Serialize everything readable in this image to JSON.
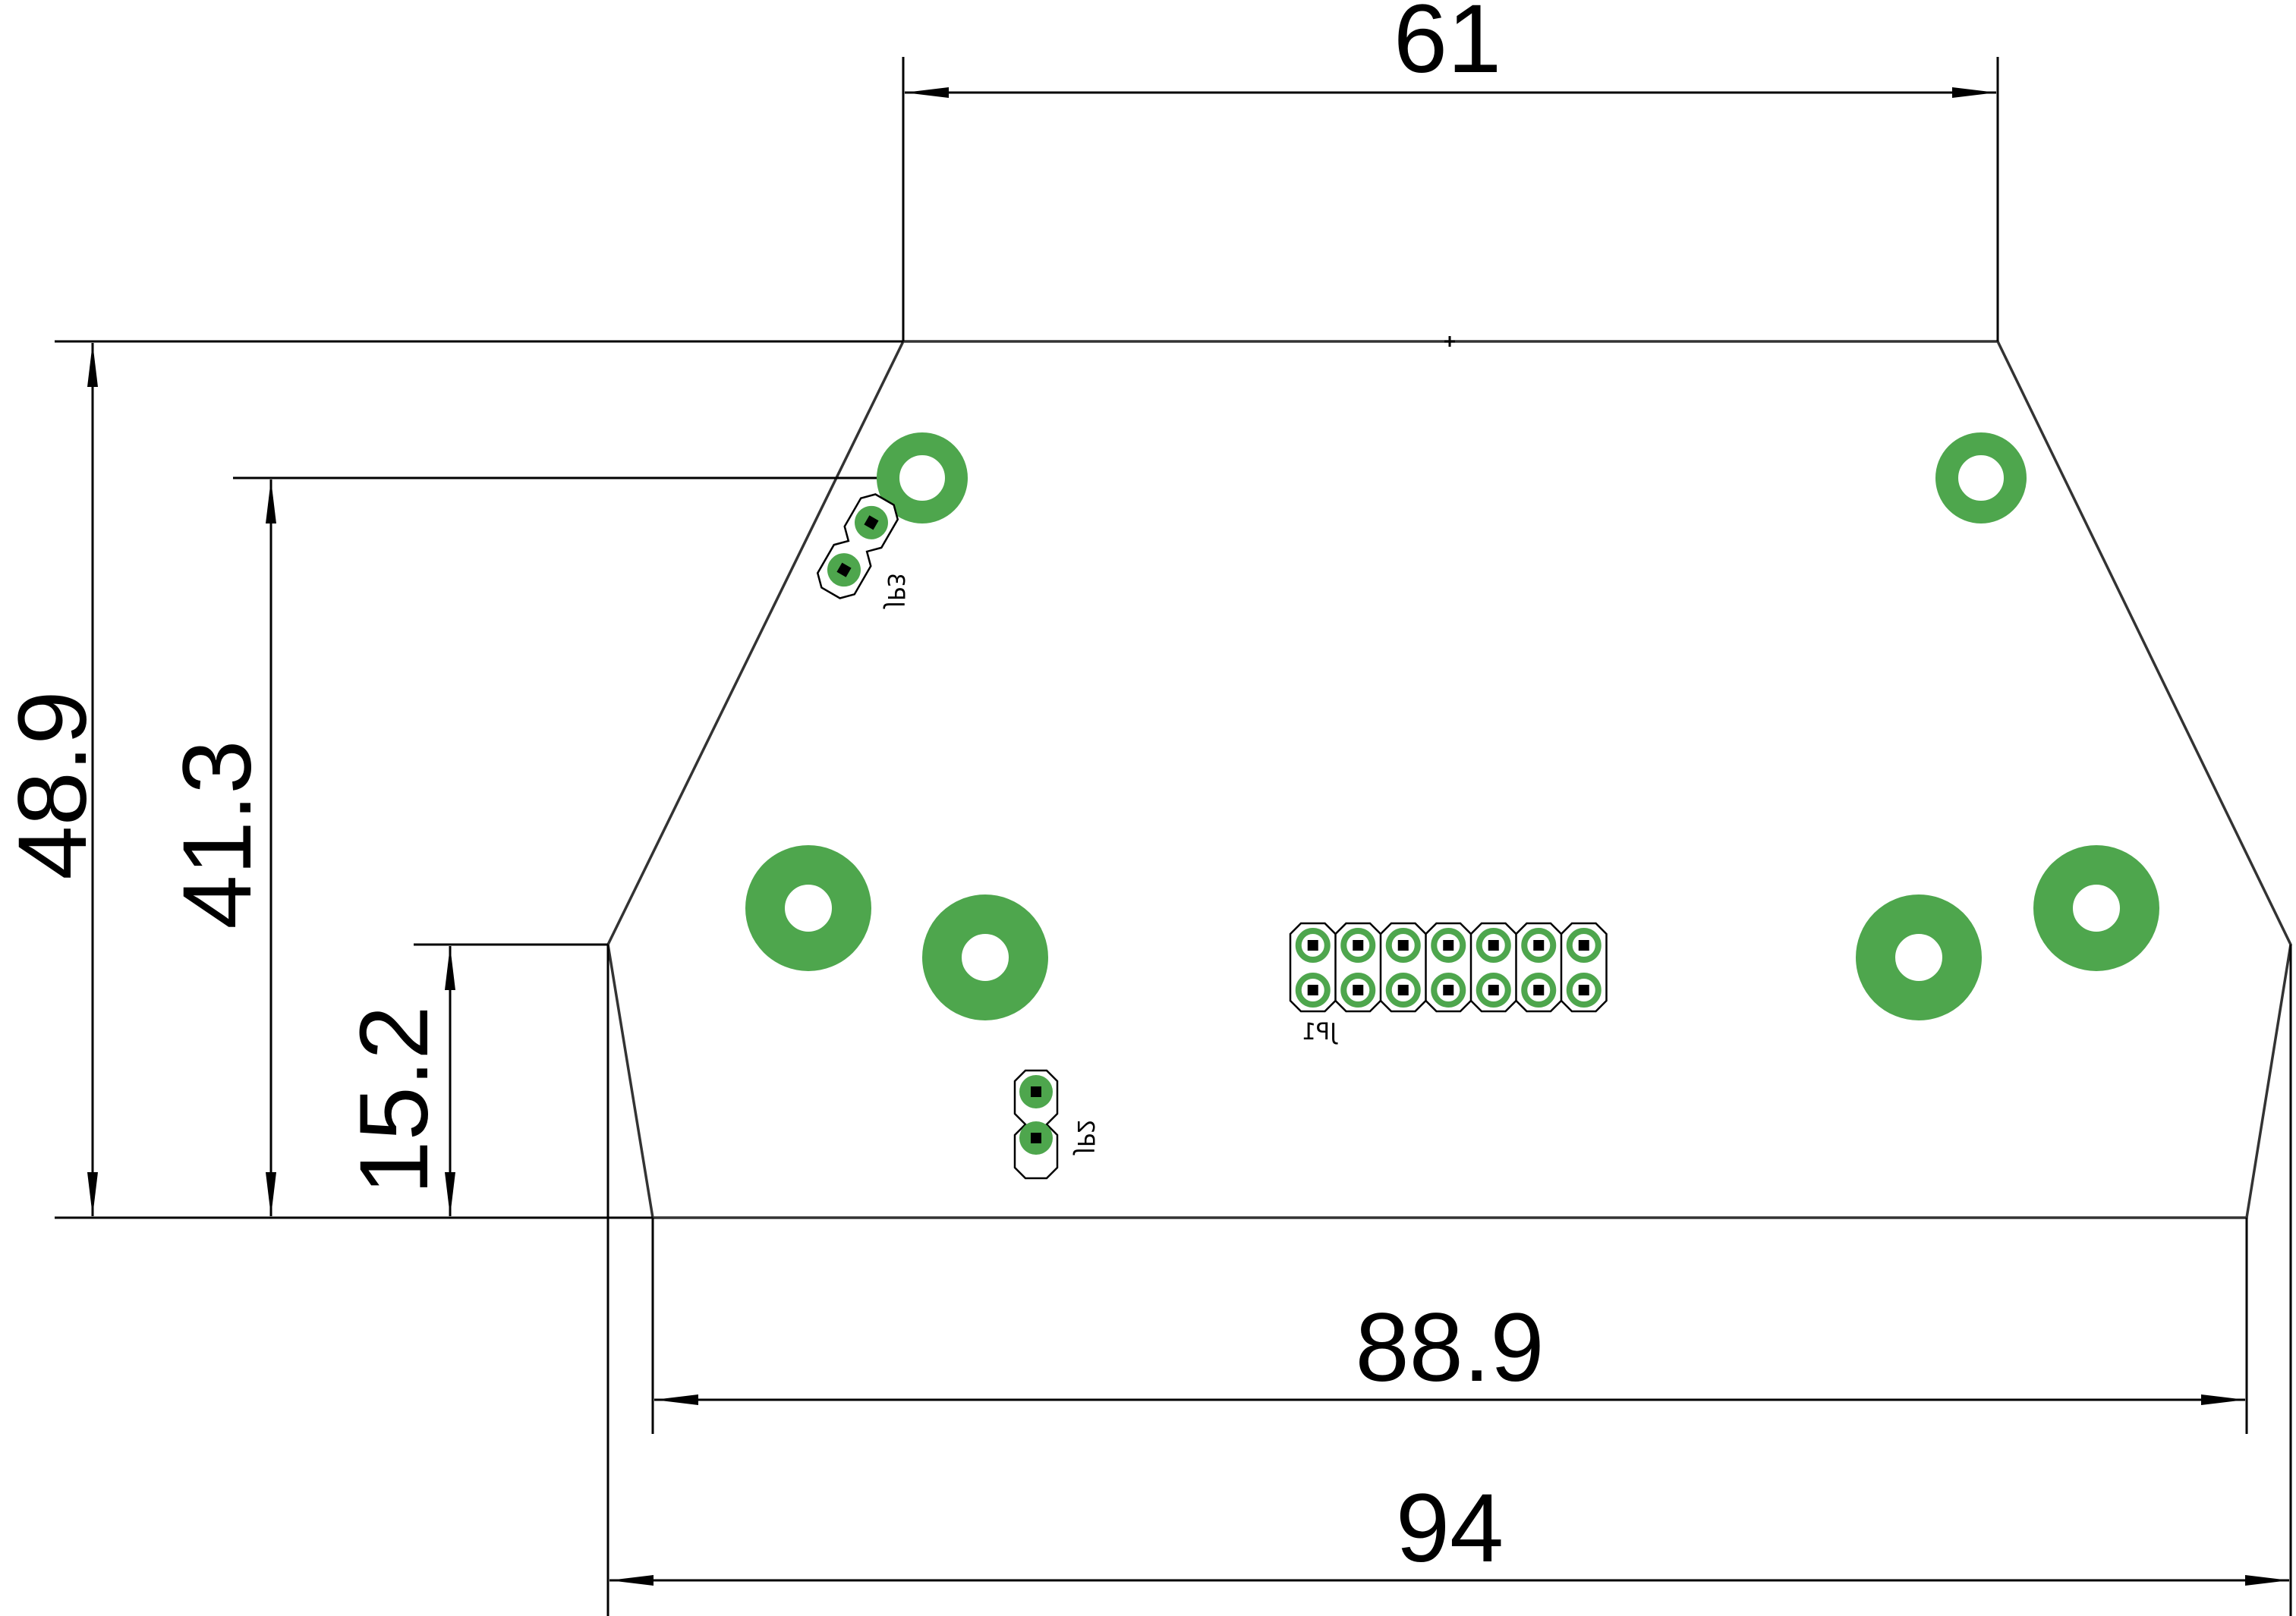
{
  "dimensions": {
    "top_width": "61",
    "bottom_inner_width": "88.9",
    "bottom_outer_width": "94",
    "total_height": "48.9",
    "hole_height": "41.3",
    "side_height": "15.2"
  },
  "components": {
    "jp1": "JP1",
    "jp2": "JP2",
    "jp3": "JP3"
  },
  "colors": {
    "copper": "#4ea64d",
    "outline": "#333333",
    "dimension": "#000000",
    "pad": "#000000"
  }
}
